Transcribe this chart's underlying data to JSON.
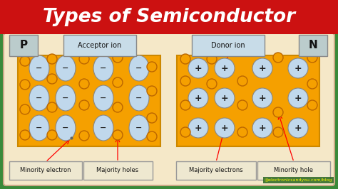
{
  "title": "Types of Semiconductor",
  "title_color": "#FFFFFF",
  "title_bg_color": "#CC1111",
  "bg_color": "#3A8A3A",
  "panel_bg_color": "#F5E8C8",
  "panel_edge_color": "#CCAA88",
  "orange_fill": "#F5A000",
  "orange_edge": "#CC8800",
  "ion_fill": "#C0D8EC",
  "ion_edge": "#888888",
  "hole_outline": "#BB6600",
  "label_box_color": "#C8DCE8",
  "label_box_edge": "#999999",
  "bottom_box_color": "#EEE8D0",
  "bottom_box_edge": "#999999",
  "p_label": "P",
  "n_label": "N",
  "acceptor_label": "Acceptor ion",
  "donor_label": "Donor ion",
  "minority_electron_label": "Minority electron",
  "majority_holes_label": "Majority holes",
  "majority_electrons_label": "Majority electrons",
  "minority_hole_label": "Minority hole",
  "watermark": "@electronicsandyou.com/blog",
  "figsize": [
    4.74,
    2.66
  ],
  "dpi": 100
}
